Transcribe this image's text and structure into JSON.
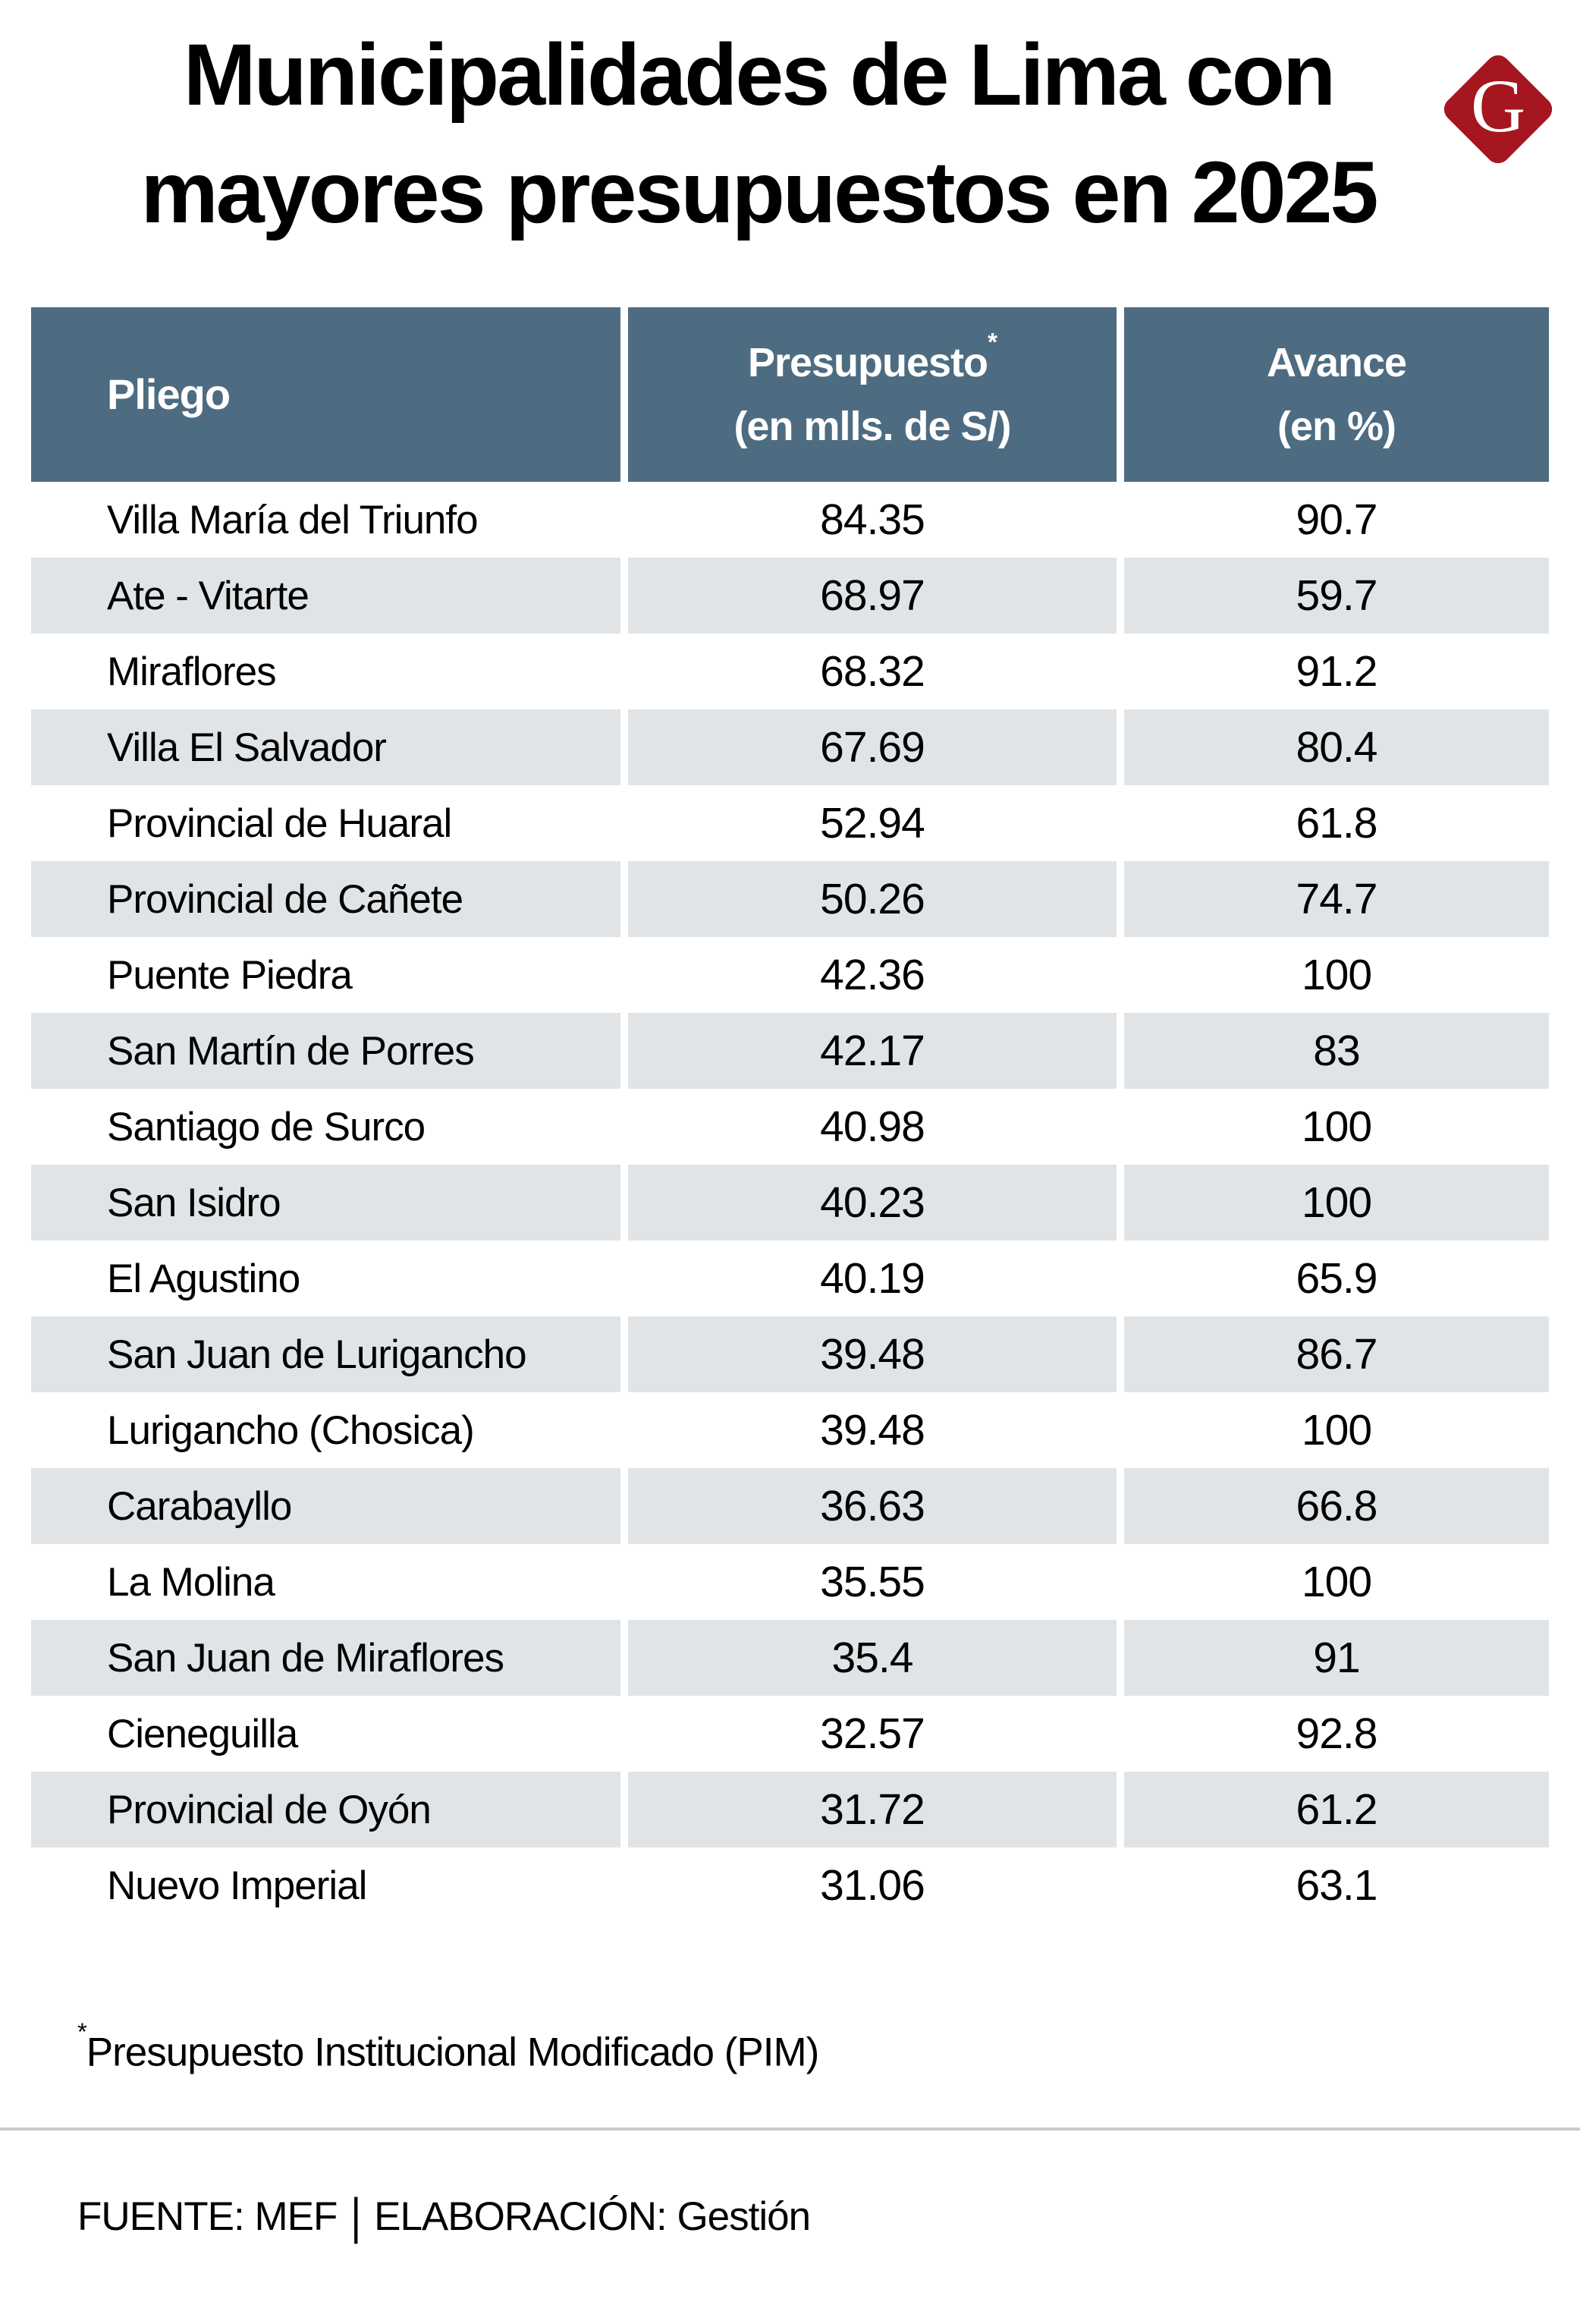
{
  "title": {
    "line1": "Municipalidades de Lima con",
    "line2": "mayores presupuestos en 2025"
  },
  "logo": {
    "letter": "G",
    "color": "#a5161f"
  },
  "colors": {
    "header_bg": "#4e6c81",
    "row_alt_bg": "#e1e4e6",
    "logo_red": "#a5161f",
    "divider": "#c7cacb"
  },
  "table": {
    "header": {
      "col1": "Pliego",
      "col2_line1": "Presupuesto",
      "col2_sup": "*",
      "col2_line2": "(en mlls. de S/)",
      "col3_line1": "Avance",
      "col3_line2": "(en %)"
    },
    "rows": [
      {
        "name": "Villa María del Triunfo",
        "presupuesto": "84.35",
        "avance": "90.7"
      },
      {
        "name": "Ate - Vitarte",
        "presupuesto": "68.97",
        "avance": "59.7"
      },
      {
        "name": "Miraflores",
        "presupuesto": "68.32",
        "avance": "91.2"
      },
      {
        "name": "Villa El Salvador",
        "presupuesto": "67.69",
        "avance": "80.4"
      },
      {
        "name": "Provincial de Huaral",
        "presupuesto": "52.94",
        "avance": "61.8"
      },
      {
        "name": "Provincial de Cañete",
        "presupuesto": "50.26",
        "avance": "74.7"
      },
      {
        "name": "Puente Piedra",
        "presupuesto": "42.36",
        "avance": "100"
      },
      {
        "name": "San Martín de Porres",
        "presupuesto": "42.17",
        "avance": "83"
      },
      {
        "name": "Santiago de Surco",
        "presupuesto": "40.98",
        "avance": "100"
      },
      {
        "name": "San Isidro",
        "presupuesto": "40.23",
        "avance": "100"
      },
      {
        "name": "El Agustino",
        "presupuesto": "40.19",
        "avance": "65.9"
      },
      {
        "name": "San Juan de Lurigancho",
        "presupuesto": "39.48",
        "avance": "86.7"
      },
      {
        "name": "Lurigancho (Chosica)",
        "presupuesto": "39.48",
        "avance": "100"
      },
      {
        "name": "Carabayllo",
        "presupuesto": "36.63",
        "avance": "66.8"
      },
      {
        "name": "La Molina",
        "presupuesto": "35.55",
        "avance": "100"
      },
      {
        "name": "San Juan de Miraflores",
        "presupuesto": "35.4",
        "avance": "91"
      },
      {
        "name": "Cieneguilla",
        "presupuesto": "32.57",
        "avance": "92.8"
      },
      {
        "name": "Provincial de Oyón",
        "presupuesto": "31.72",
        "avance": "61.2"
      },
      {
        "name": "Nuevo Imperial",
        "presupuesto": "31.06",
        "avance": "63.1"
      }
    ]
  },
  "footnote": {
    "sup": "*",
    "text": "Presupuesto Institucional Modificado (PIM)"
  },
  "footer": {
    "source": "FUENTE: MEF",
    "separator": "|",
    "elaboration": "ELABORACIÓN: Gestión"
  },
  "chart_data": {
    "type": "table",
    "title": "Municipalidades de Lima con mayores presupuestos en 2025",
    "columns": [
      "Pliego",
      "Presupuesto* (en mlls. de S/)",
      "Avance (en %)"
    ],
    "rows": [
      [
        "Villa María del Triunfo",
        84.35,
        90.7
      ],
      [
        "Ate - Vitarte",
        68.97,
        59.7
      ],
      [
        "Miraflores",
        68.32,
        91.2
      ],
      [
        "Villa El Salvador",
        67.69,
        80.4
      ],
      [
        "Provincial de Huaral",
        52.94,
        61.8
      ],
      [
        "Provincial de Cañete",
        50.26,
        74.7
      ],
      [
        "Puente Piedra",
        42.36,
        100
      ],
      [
        "San Martín de Porres",
        42.17,
        83
      ],
      [
        "Santiago de Surco",
        40.98,
        100
      ],
      [
        "San Isidro",
        40.23,
        100
      ],
      [
        "El Agustino",
        40.19,
        65.9
      ],
      [
        "San Juan de Lurigancho",
        39.48,
        86.7
      ],
      [
        "Lurigancho (Chosica)",
        39.48,
        100
      ],
      [
        "Carabayllo",
        36.63,
        66.8
      ],
      [
        "La Molina",
        35.55,
        100
      ],
      [
        "San Juan de Miraflores",
        35.4,
        91
      ],
      [
        "Cieneguilla",
        32.57,
        92.8
      ],
      [
        "Provincial de Oyón",
        31.72,
        61.2
      ],
      [
        "Nuevo Imperial",
        31.06,
        63.1
      ]
    ],
    "footnote": "*Presupuesto Institucional Modificado (PIM)",
    "source": "FUENTE: MEF | ELABORACIÓN: Gestión",
    "legend_position": "none",
    "grid": false
  }
}
